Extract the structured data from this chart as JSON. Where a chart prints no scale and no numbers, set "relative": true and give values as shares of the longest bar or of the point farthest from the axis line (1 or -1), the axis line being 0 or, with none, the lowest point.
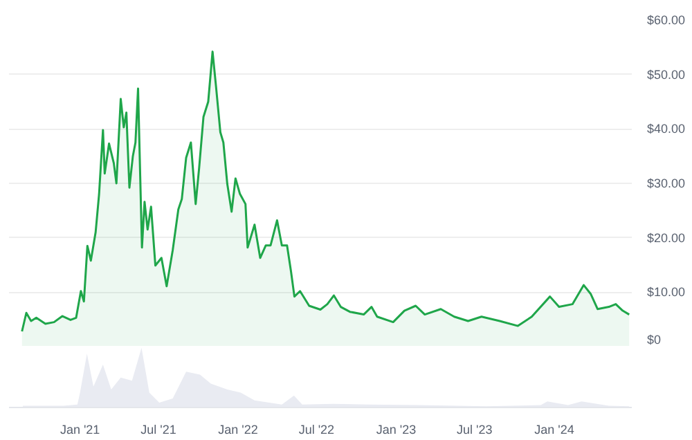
{
  "chart_data": [
    {
      "type": "area",
      "xlim": [
        "2020-07-21",
        "2024-06-28"
      ],
      "ylim": [
        0,
        60
      ],
      "yticks": [
        {
          "value": 0,
          "label": "$0"
        },
        {
          "value": 10,
          "label": "$10.00"
        },
        {
          "value": 20,
          "label": "$20.00"
        },
        {
          "value": 30,
          "label": "$30.00"
        },
        {
          "value": 40,
          "label": "$40.00"
        },
        {
          "value": 50,
          "label": "$50.00"
        },
        {
          "value": 60,
          "label": "$60.00"
        }
      ],
      "grid": "y",
      "tick_labels": "y",
      "series": [
        {
          "color": "#1fa64a",
          "x": [
            "2020-08-20",
            "2020-08-30",
            "2020-09-10",
            "2020-09-22",
            "2020-10-13",
            "2020-11-02",
            "2020-11-21",
            "2020-12-10",
            "2020-12-23",
            "2021-01-03",
            "2021-01-10",
            "2021-01-18",
            "2021-01-26",
            "2021-02-06",
            "2021-02-14",
            "2021-02-23",
            "2021-02-27",
            "2021-03-09",
            "2021-03-20",
            "2021-03-26",
            "2021-04-05",
            "2021-04-12",
            "2021-04-18",
            "2021-04-25",
            "2021-05-03",
            "2021-05-09",
            "2021-05-15",
            "2021-05-24",
            "2021-05-30",
            "2021-06-06",
            "2021-06-14",
            "2021-06-24",
            "2021-07-08",
            "2021-07-20",
            "2021-08-03",
            "2021-08-16",
            "2021-08-24",
            "2021-09-03",
            "2021-09-14",
            "2021-09-25",
            "2021-10-03",
            "2021-10-13",
            "2021-10-24",
            "2021-11-03",
            "2021-11-11",
            "2021-11-21",
            "2021-11-28",
            "2021-12-07",
            "2021-12-17",
            "2021-12-26",
            "2022-01-05",
            "2022-01-18",
            "2022-01-23",
            "2022-02-08",
            "2022-02-21",
            "2022-03-06",
            "2022-03-17",
            "2022-04-01",
            "2022-04-12",
            "2022-04-24",
            "2022-05-03",
            "2022-05-11",
            "2022-05-24",
            "2022-06-14",
            "2022-07-10",
            "2022-07-26",
            "2022-08-10",
            "2022-08-26",
            "2022-09-16",
            "2022-10-18",
            "2022-11-05",
            "2022-11-18",
            "2022-12-25",
            "2023-01-20",
            "2023-02-15",
            "2023-03-08",
            "2023-04-14",
            "2023-05-15",
            "2023-06-16",
            "2023-07-17",
            "2023-08-28",
            "2023-10-09",
            "2023-11-10",
            "2023-12-22",
            "2024-01-12",
            "2024-02-12",
            "2024-03-09",
            "2024-03-25",
            "2024-04-10",
            "2024-05-06",
            "2024-05-22",
            "2024-06-07",
            "2024-06-22"
          ],
          "values": [
            2.8,
            6.2,
            4.7,
            5.3,
            4.2,
            4.5,
            5.6,
            4.9,
            5.3,
            10.2,
            8.3,
            18.5,
            15.8,
            21,
            28,
            39.8,
            31.8,
            37.3,
            33.7,
            30,
            45.5,
            40.3,
            43,
            29.2,
            35,
            37.5,
            47.4,
            18.2,
            26.6,
            21.5,
            25.7,
            14.9,
            16.3,
            11.1,
            17.7,
            25.2,
            27.1,
            34.7,
            37.5,
            26.2,
            32.8,
            42.2,
            45,
            54.2,
            47.8,
            39.4,
            37.5,
            29.9,
            24.8,
            30.9,
            28.1,
            26.2,
            18.2,
            22.4,
            16.3,
            18.6,
            18.6,
            23.2,
            18.6,
            18.6,
            13.9,
            9.2,
            10.2,
            7.5,
            6.8,
            7.8,
            9.4,
            7.3,
            6.4,
            5.9,
            7.3,
            5.5,
            4.5,
            6.6,
            7.5,
            5.9,
            6.9,
            5.5,
            4.7,
            5.5,
            4.7,
            3.8,
            5.5,
            9.2,
            7.3,
            7.8,
            11.3,
            9.7,
            6.9,
            7.3,
            7.8,
            6.6,
            5.9
          ]
        }
      ]
    },
    {
      "type": "area",
      "relative": true,
      "xlim": [
        "2020-07-21",
        "2024-06-28"
      ],
      "xticks": [
        {
          "value": "2021-01-01",
          "label": "Jan '21"
        },
        {
          "value": "2021-07-01",
          "label": "Jul '21"
        },
        {
          "value": "2022-01-01",
          "label": "Jan '22"
        },
        {
          "value": "2022-07-01",
          "label": "Jul '22"
        },
        {
          "value": "2023-01-01",
          "label": "Jan '23"
        },
        {
          "value": "2023-07-01",
          "label": "Jul '23"
        },
        {
          "value": "2024-01-01",
          "label": "Jan '24"
        }
      ],
      "tick_labels": "x",
      "series": [
        {
          "color": "#e9ebf2",
          "x": [
            "2020-08-22",
            "2020-11-24",
            "2020-12-26",
            "2021-01-01",
            "2021-01-17",
            "2021-02-01",
            "2021-02-23",
            "2021-03-14",
            "2021-04-05",
            "2021-05-01",
            "2021-05-23",
            "2021-06-10",
            "2021-07-03",
            "2021-08-03",
            "2021-09-03",
            "2021-10-05",
            "2021-10-30",
            "2021-12-07",
            "2022-01-07",
            "2022-02-08",
            "2022-04-12",
            "2022-05-10",
            "2022-05-29",
            "2022-08-09",
            "2022-11-02",
            "2023-02-20",
            "2023-07-28",
            "2023-12-01",
            "2023-12-16",
            "2024-02-02",
            "2024-03-04",
            "2024-05-06",
            "2024-06-22"
          ],
          "values": [
            0.03,
            0.03,
            0.05,
            0.25,
            0.9,
            0.35,
            0.72,
            0.3,
            0.5,
            0.45,
            1,
            0.25,
            0.08,
            0.15,
            0.6,
            0.55,
            0.4,
            0.3,
            0.25,
            0.12,
            0.05,
            0.2,
            0.05,
            0.06,
            0.05,
            0.04,
            0.02,
            0.04,
            0.1,
            0.04,
            0.1,
            0.03,
            0.02
          ]
        }
      ]
    }
  ]
}
